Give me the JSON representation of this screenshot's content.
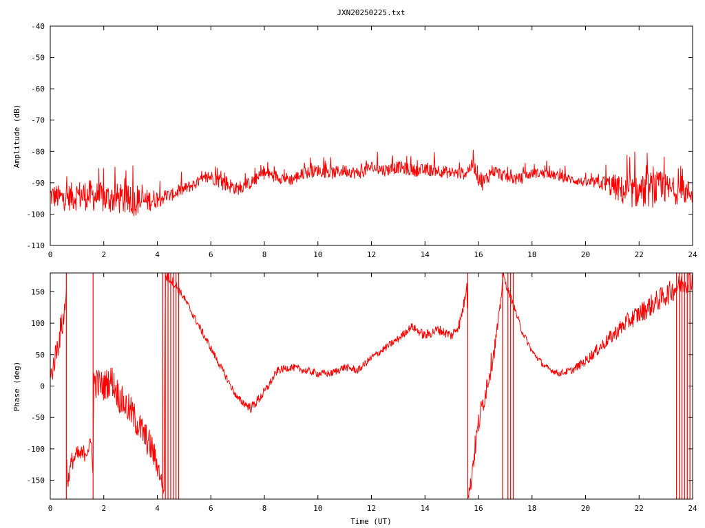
{
  "chart_data": [
    {
      "type": "line",
      "title": "JXN20250225.txt",
      "xlabel": "",
      "ylabel": "Amplitude (dB)",
      "xlim": [
        0,
        24
      ],
      "ylim": [
        -110,
        -40
      ],
      "x_ticks": [
        0,
        2,
        4,
        6,
        8,
        10,
        12,
        14,
        16,
        18,
        20,
        22,
        24
      ],
      "y_ticks": [
        -40,
        -50,
        -60,
        -70,
        -80,
        -90,
        -100,
        -110
      ],
      "grid": false,
      "color": "#ff0000",
      "series": [
        {
          "x": [
            0,
            0.5,
            1,
            1.5,
            2,
            2.5,
            3,
            3.5,
            4,
            4.5,
            5,
            5.5,
            6,
            6.5,
            7,
            7.5,
            8,
            8.5,
            9,
            9.5,
            10,
            10.5,
            11,
            11.5,
            12,
            12.5,
            13,
            13.5,
            14,
            14.5,
            15,
            15.5,
            15.8,
            16,
            16.2,
            16.5,
            17,
            17.5,
            18,
            18.5,
            19,
            19.5,
            20,
            20.5,
            21,
            21.5,
            22,
            22.5,
            23,
            23.5,
            24
          ],
          "y": [
            -94,
            -95,
            -94,
            -94,
            -95,
            -95,
            -96,
            -96,
            -95,
            -94,
            -92,
            -90,
            -88,
            -90,
            -92,
            -90,
            -87,
            -88,
            -89,
            -87,
            -86,
            -87,
            -86,
            -87,
            -85,
            -86,
            -85,
            -86,
            -86,
            -86,
            -87,
            -87,
            -84,
            -88,
            -90,
            -86,
            -88,
            -89,
            -87,
            -87,
            -88,
            -89,
            -90,
            -90,
            -91,
            -93,
            -93,
            -92,
            -92,
            -93,
            -93
          ],
          "noise": [
            4,
            4,
            5,
            5,
            5,
            5,
            5,
            4,
            3,
            2,
            2,
            2,
            2,
            3,
            2,
            2,
            2,
            2,
            2,
            2,
            2,
            2,
            2,
            2,
            2,
            2,
            2,
            2,
            2,
            2,
            2,
            2,
            2,
            3,
            3,
            2,
            2,
            2,
            1.5,
            1.5,
            1.5,
            1.5,
            1.5,
            2,
            4,
            5,
            5,
            6,
            5,
            4,
            4
          ]
        }
      ]
    },
    {
      "type": "line",
      "title": "",
      "xlabel": "Time (UT)",
      "ylabel": "Phase (deg)",
      "xlim": [
        0,
        24
      ],
      "ylim": [
        -180,
        180
      ],
      "x_ticks": [
        0,
        2,
        4,
        6,
        8,
        10,
        12,
        14,
        16,
        18,
        20,
        22,
        24
      ],
      "y_ticks": [
        150,
        100,
        50,
        0,
        -50,
        -100,
        -150
      ],
      "grid": false,
      "color": "#ff0000",
      "series": [
        {
          "x": [
            0,
            0.2,
            0.4,
            0.55,
            0.6,
            0.62,
            0.8,
            1.0,
            1.2,
            1.4,
            1.55,
            1.6,
            1.62,
            1.7,
            2.0,
            2.3,
            2.6,
            3.0,
            3.4,
            3.8,
            4.1,
            4.25,
            4.3,
            4.5,
            4.7,
            4.85,
            5.0,
            5.5,
            6.0,
            6.5,
            7.0,
            7.5,
            8.0,
            8.5,
            9.0,
            9.5,
            10.0,
            10.5,
            11.0,
            11.5,
            12.0,
            12.5,
            13.0,
            13.5,
            14.0,
            14.5,
            15.0,
            15.3,
            15.5,
            15.58,
            15.6,
            15.7,
            15.8,
            16.0,
            16.2,
            16.4,
            16.6,
            16.8,
            16.9,
            16.92,
            17.0,
            17.3,
            17.6,
            18.0,
            18.5,
            19.0,
            19.5,
            20.0,
            20.5,
            21.0,
            21.5,
            22.0,
            22.5,
            23.0,
            23.5,
            24.0
          ],
          "y": [
            10,
            50,
            90,
            120,
            160,
            -160,
            -120,
            -110,
            -110,
            -100,
            -90,
            -150,
            10,
            5,
            0,
            10,
            -20,
            -40,
            -70,
            -100,
            -140,
            -170,
            175,
            170,
            160,
            150,
            140,
            100,
            60,
            20,
            -20,
            -35,
            -10,
            25,
            30,
            25,
            20,
            20,
            30,
            25,
            45,
            60,
            75,
            95,
            80,
            90,
            80,
            100,
            140,
            175,
            -175,
            -160,
            -120,
            -60,
            -20,
            20,
            60,
            120,
            170,
            178,
            165,
            130,
            90,
            55,
            30,
            20,
            25,
            40,
            60,
            80,
            100,
            115,
            130,
            145,
            160,
            170
          ],
          "noise": [
            20,
            20,
            25,
            25,
            10,
            10,
            15,
            15,
            15,
            15,
            10,
            10,
            25,
            25,
            25,
            25,
            25,
            25,
            25,
            25,
            15,
            10,
            10,
            8,
            8,
            6,
            6,
            6,
            6,
            6,
            6,
            8,
            8,
            6,
            6,
            6,
            6,
            6,
            6,
            6,
            6,
            6,
            6,
            6,
            8,
            8,
            8,
            10,
            10,
            6,
            6,
            15,
            20,
            20,
            20,
            20,
            15,
            10,
            6,
            6,
            6,
            6,
            6,
            5,
            5,
            5,
            6,
            8,
            10,
            12,
            14,
            16,
            18,
            18,
            18,
            18
          ],
          "wraps": [
            0.6,
            1.6,
            4.2,
            4.3,
            4.4,
            4.5,
            4.6,
            4.7,
            4.8,
            15.6,
            16.9,
            17.1,
            17.2,
            17.3,
            23.4,
            23.5,
            23.6,
            23.7,
            23.8,
            23.9
          ]
        }
      ]
    }
  ]
}
